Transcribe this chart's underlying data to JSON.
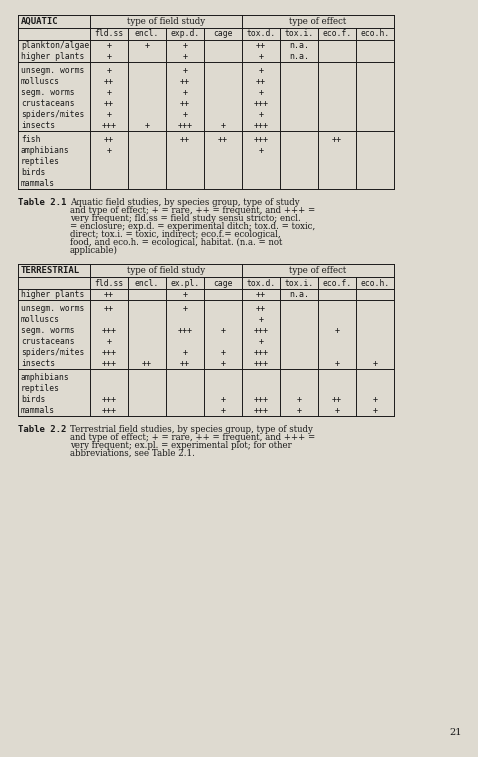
{
  "bg_color": "#dedad0",
  "text_color": "#1a1a1a",
  "page_num": "21",
  "aquatic_table": {
    "title": "AQUATIC",
    "headers": [
      "fld.ss",
      "encl.",
      "exp.d.",
      "cage",
      "tox.d.",
      "tox.i.",
      "eco.f.",
      "eco.h."
    ],
    "row_groups": [
      [
        [
          "plankton/algae",
          "+",
          "+",
          "+",
          "",
          "++",
          "n.a.",
          "",
          ""
        ],
        [
          "higher plants",
          "+",
          "",
          "+",
          "",
          "+",
          "n.a.",
          "",
          ""
        ]
      ],
      [
        [
          "unsegm. worms",
          "+",
          "",
          "+",
          "",
          "+",
          "",
          "",
          ""
        ],
        [
          "molluscs",
          "++",
          "",
          "++",
          "",
          "++",
          "",
          "",
          ""
        ],
        [
          "segm. worms",
          "+",
          "",
          "+",
          "",
          "+",
          "",
          "",
          ""
        ],
        [
          "crustaceans",
          "++",
          "",
          "++",
          "",
          "+++",
          "",
          "",
          ""
        ],
        [
          "spiders/mites",
          "+",
          "",
          "+",
          "",
          "+",
          "",
          "",
          ""
        ],
        [
          "insects",
          "+++",
          "+",
          "+++",
          "+",
          "+++",
          "",
          "",
          ""
        ]
      ],
      [
        [
          "fish",
          "++",
          "",
          "++",
          "++",
          "+++",
          "",
          "++",
          ""
        ],
        [
          "amphibians",
          "+",
          "",
          "",
          "",
          "+",
          "",
          "",
          ""
        ],
        [
          "reptiles",
          "",
          "",
          "",
          "",
          "",
          "",
          "",
          ""
        ],
        [
          "birds",
          "",
          "",
          "",
          "",
          "",
          "",
          "",
          ""
        ],
        [
          "mammals",
          "",
          "",
          "",
          "",
          "",
          "",
          "",
          ""
        ]
      ]
    ],
    "caption_label": "Table 2.1",
    "caption_lines": [
      "Aquatic field studies, by species group, type of study",
      "and type of effect; + = rare, ++ = frequent, and +++ =",
      "very frequent; fld.ss = field study sensu stricto; encl.",
      "= enclosure; exp.d. = experimental ditch; tox.d. = toxic,",
      "direct; tox.i. = toxic, indirect; eco.f.= ecological,",
      "food, and eco.h. = ecological, habitat. (n.a. = not",
      "applicable)"
    ]
  },
  "terrestrial_table": {
    "title": "TERRESTRIAL",
    "headers": [
      "fld.ss",
      "encl.",
      "ex.pl.",
      "cage",
      "tox.d.",
      "tox.i.",
      "eco.f.",
      "eco.h."
    ],
    "row_groups": [
      [
        [
          "higher plants",
          "++",
          "",
          "+",
          "",
          "++",
          "n.a.",
          "",
          ""
        ]
      ],
      [
        [
          "unsegm. worms",
          "++",
          "",
          "+",
          "",
          "++",
          "",
          "",
          ""
        ],
        [
          "molluscs",
          "",
          "",
          "",
          "",
          "+",
          "",
          "",
          ""
        ],
        [
          "segm. worms",
          "+++",
          "",
          "+++",
          "+",
          "+++",
          "",
          "+",
          ""
        ],
        [
          "crustaceans",
          "+",
          "",
          "",
          "",
          "+",
          "",
          "",
          ""
        ],
        [
          "spiders/mites",
          "+++",
          "",
          "+",
          "+",
          "+++",
          "",
          "",
          ""
        ],
        [
          "insects",
          "+++",
          "++",
          "++",
          "+",
          "+++",
          "",
          "+",
          "+"
        ]
      ],
      [
        [
          "amphibians",
          "",
          "",
          "",
          "",
          "",
          "",
          "",
          ""
        ],
        [
          "reptiles",
          "",
          "",
          "",
          "",
          "",
          "",
          "",
          ""
        ],
        [
          "birds",
          "+++",
          "",
          "",
          "+",
          "+++",
          "+",
          "++",
          "+"
        ],
        [
          "mammals",
          "+++",
          "",
          "",
          "+",
          "+++",
          "+",
          "+",
          "+"
        ]
      ]
    ],
    "caption_label": "Table 2.2",
    "caption_lines": [
      "Terrestrial field studies, by species group, type of study",
      "and type of effect; + = rare, ++ = frequent, and +++ =",
      "very frequent; ex.pl. = experimental plot; for other",
      "abbreviations, see Table 2.1."
    ]
  }
}
